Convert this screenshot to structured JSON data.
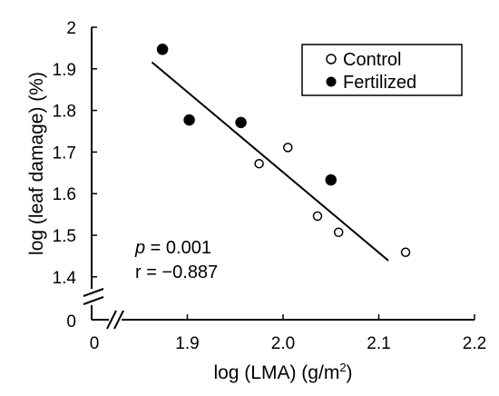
{
  "chart_data": {
    "type": "scatter",
    "xlabel": "log (LMA) (g/m",
    "xlabel_sup": "2",
    "xlabel_close": ")",
    "ylabel": "log (leaf damage) (%)",
    "xlim": [
      1.8,
      2.2
    ],
    "ylim": [
      1.35,
      2.0
    ],
    "axis_break": true,
    "x_ticks": [
      1.9,
      2.0,
      2.1,
      2.2
    ],
    "x_tick_labels": [
      "1.9",
      "2.0",
      "2.1",
      "2.2"
    ],
    "y_ticks": [
      1.4,
      1.5,
      1.6,
      1.7,
      1.8,
      1.9,
      2.0
    ],
    "y_tick_labels": [
      "1.4",
      "1.5",
      "1.6",
      "1.7",
      "1.8",
      "1.9",
      "2"
    ],
    "x_origin_label": "0",
    "y_origin_label": "0",
    "legend_position": "top-right",
    "series": [
      {
        "name": "Control",
        "marker": "open-circle",
        "points": [
          {
            "x": 1.975,
            "y": 1.672
          },
          {
            "x": 2.005,
            "y": 1.711
          },
          {
            "x": 2.036,
            "y": 1.546
          },
          {
            "x": 2.058,
            "y": 1.507
          },
          {
            "x": 2.128,
            "y": 1.459
          }
        ]
      },
      {
        "name": "Fertilized",
        "marker": "filled-circle",
        "points": [
          {
            "x": 1.874,
            "y": 1.947
          },
          {
            "x": 1.902,
            "y": 1.777
          },
          {
            "x": 1.956,
            "y": 1.771
          },
          {
            "x": 2.05,
            "y": 1.633
          }
        ]
      }
    ],
    "regression_line": {
      "x_start": 1.863,
      "y_start": 1.916,
      "x_end": 2.11,
      "y_end": 1.439
    },
    "annotations": {
      "p_symbol": "p",
      "p_value_text": " = 0.001",
      "r_text": "r = −0.887"
    },
    "grid": false
  }
}
